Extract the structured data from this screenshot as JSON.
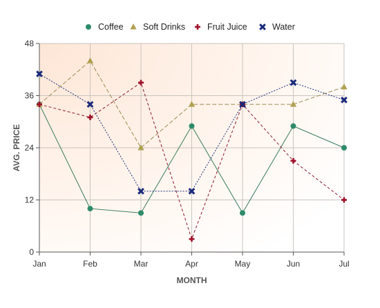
{
  "chart_data": {
    "type": "line",
    "categories": [
      "Jan",
      "Feb",
      "Mar",
      "Apr",
      "May",
      "Jun",
      "Jul"
    ],
    "xlabel": "MONTH",
    "ylabel": "AVG. PRICE",
    "ylim": [
      0,
      48
    ],
    "yticks": [
      "0",
      "12",
      "24",
      "36",
      "48"
    ],
    "grid": true,
    "legend": "top-center",
    "series": [
      {
        "name": "Coffee",
        "color": "#2e8b6a",
        "line_color": "#3a7a5a",
        "marker": "circle-icon",
        "dash": "solid",
        "values": [
          34,
          10,
          9,
          29,
          9,
          29,
          24
        ]
      },
      {
        "name": "Soft Drinks",
        "color": "#b0a050",
        "line_color": "#9a8a50",
        "marker": "triangle-icon",
        "dash": "long-dash",
        "values": [
          34,
          44,
          24,
          34,
          34,
          34,
          38
        ]
      },
      {
        "name": "Fruit Juice",
        "color": "#a0102a",
        "line_color": "#8b1a2a",
        "marker": "plus-icon",
        "dash": "dash",
        "values": [
          34,
          31,
          39,
          3,
          34,
          21,
          12
        ]
      },
      {
        "name": "Water",
        "color": "#1a2a7a",
        "line_color": "#1a2a7a",
        "marker": "x-icon",
        "dash": "dot",
        "values": [
          41,
          34,
          14,
          14,
          34,
          39,
          35
        ]
      }
    ]
  }
}
